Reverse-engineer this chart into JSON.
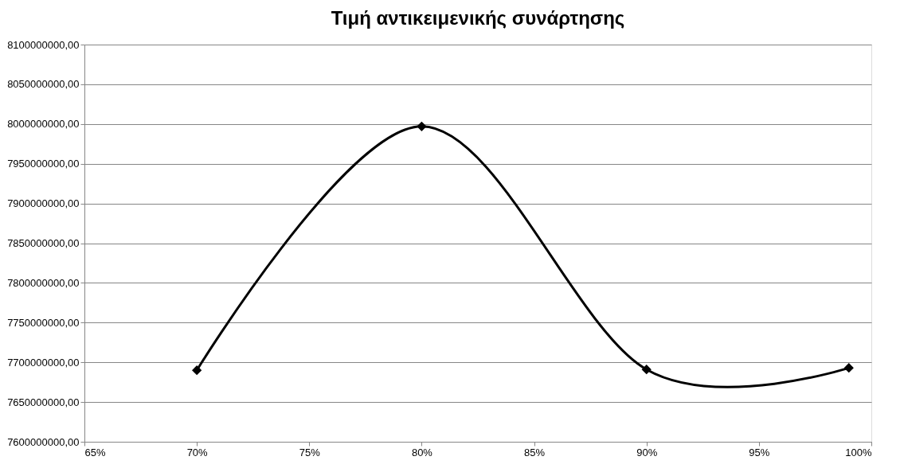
{
  "chart_data": {
    "type": "line",
    "title": "Τιμή αντικειμενικής συνάρτησης",
    "x": [
      0.7,
      0.8,
      0.9,
      0.99
    ],
    "series": [
      {
        "color": "#000000",
        "values": [
          7690000000,
          7997000000,
          7691000000,
          7693000000
        ]
      }
    ],
    "xlim": [
      0.65,
      1.0
    ],
    "xticks": [
      {
        "value": 0.65,
        "label": "65%"
      },
      {
        "value": 0.7,
        "label": "70%"
      },
      {
        "value": 0.75,
        "label": "75%"
      },
      {
        "value": 0.8,
        "label": "80%"
      },
      {
        "value": 0.85,
        "label": "85%"
      },
      {
        "value": 0.9,
        "label": "90%"
      },
      {
        "value": 0.95,
        "label": "95%"
      },
      {
        "value": 1.0,
        "label": "100%"
      }
    ],
    "ylim": [
      7600000000,
      8100000000
    ],
    "yticks": [
      {
        "value": 7600000000,
        "label": "7600000000,00"
      },
      {
        "value": 7650000000,
        "label": "7650000000,00"
      },
      {
        "value": 7700000000,
        "label": "7700000000,00"
      },
      {
        "value": 7750000000,
        "label": "7750000000,00"
      },
      {
        "value": 7800000000,
        "label": "7800000000,00"
      },
      {
        "value": 7850000000,
        "label": "7850000000,00"
      },
      {
        "value": 7900000000,
        "label": "7900000000,00"
      },
      {
        "value": 7950000000,
        "label": "7950000000,00"
      },
      {
        "value": 8000000000,
        "label": "8000000000,00"
      },
      {
        "value": 8050000000,
        "label": "8050000000,00"
      },
      {
        "value": 8100000000,
        "label": "8100000000,00"
      }
    ],
    "grid": "y",
    "marker": "diamond",
    "line_style": "solid"
  }
}
